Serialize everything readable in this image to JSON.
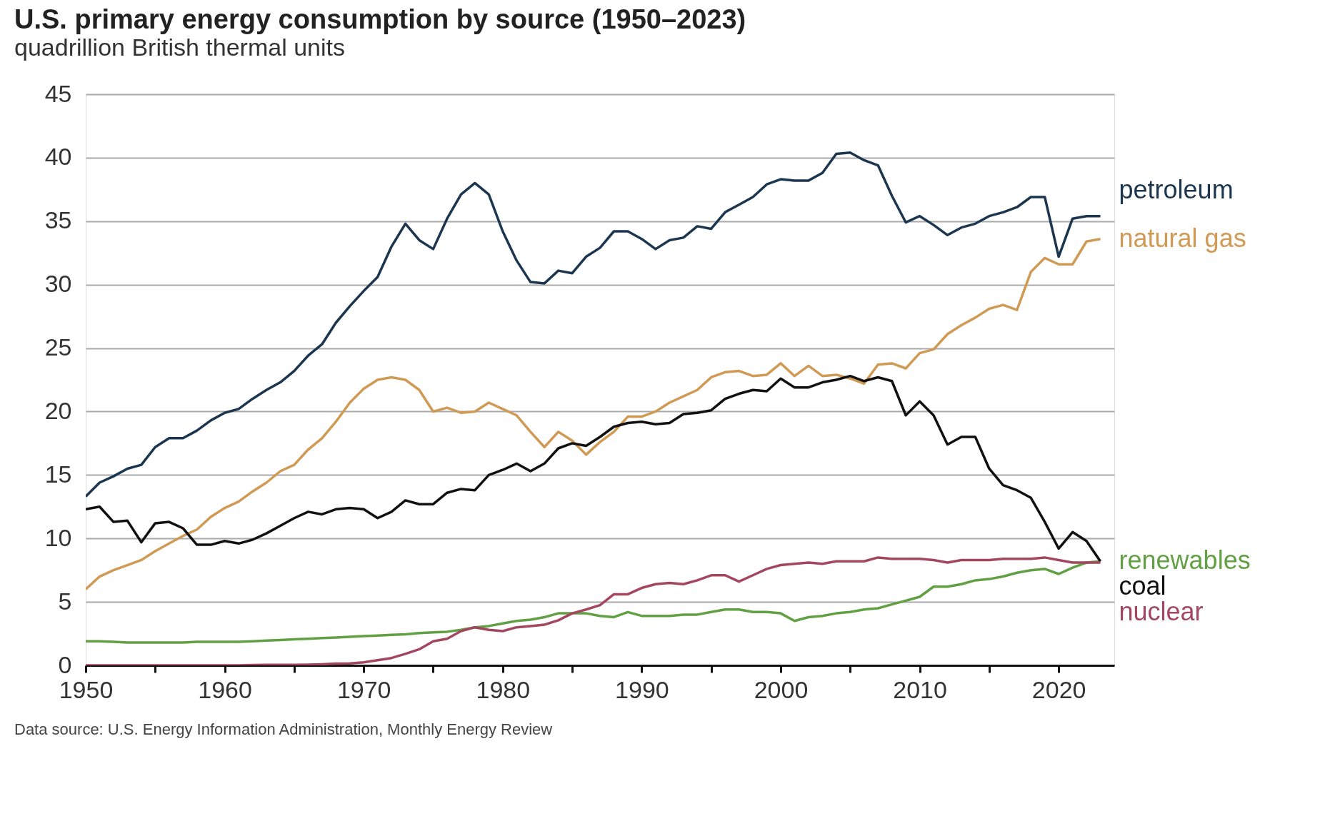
{
  "chart_data": {
    "type": "line",
    "title": "U.S. primary energy consumption by source (1950–2023)",
    "subtitle": "quadrillion British thermal units",
    "x": [
      1950,
      1951,
      1952,
      1953,
      1954,
      1955,
      1956,
      1957,
      1958,
      1959,
      1960,
      1961,
      1962,
      1963,
      1964,
      1965,
      1966,
      1967,
      1968,
      1969,
      1970,
      1971,
      1972,
      1973,
      1974,
      1975,
      1976,
      1977,
      1978,
      1979,
      1980,
      1981,
      1982,
      1983,
      1984,
      1985,
      1986,
      1987,
      1988,
      1989,
      1990,
      1991,
      1992,
      1993,
      1994,
      1995,
      1996,
      1997,
      1998,
      1999,
      2000,
      2001,
      2002,
      2003,
      2004,
      2005,
      2006,
      2007,
      2008,
      2009,
      2010,
      2011,
      2012,
      2013,
      2014,
      2015,
      2016,
      2017,
      2018,
      2019,
      2020,
      2021,
      2022,
      2023
    ],
    "series": [
      {
        "name": "petroleum",
        "color": "#1c3650",
        "values": [
          13.3,
          14.4,
          14.9,
          15.5,
          15.8,
          17.2,
          17.9,
          17.9,
          18.5,
          19.3,
          19.9,
          20.2,
          21.0,
          21.7,
          22.3,
          23.2,
          24.4,
          25.3,
          27.0,
          28.3,
          29.5,
          30.6,
          33.0,
          34.8,
          33.5,
          32.8,
          35.2,
          37.1,
          38.0,
          37.1,
          34.2,
          31.9,
          30.2,
          30.1,
          31.1,
          30.9,
          32.2,
          32.9,
          34.2,
          34.2,
          33.6,
          32.8,
          33.5,
          33.7,
          34.6,
          34.4,
          35.7,
          36.3,
          36.9,
          37.9,
          38.3,
          38.2,
          38.2,
          38.8,
          40.3,
          40.4,
          39.8,
          39.4,
          37.0,
          34.9,
          35.4,
          34.7,
          33.9,
          34.5,
          34.8,
          35.4,
          35.7,
          36.1,
          36.9,
          36.9,
          32.2,
          35.2,
          35.4,
          35.4
        ]
      },
      {
        "name": "natural gas",
        "color": "#d09a55",
        "values": [
          6.0,
          7.0,
          7.5,
          7.9,
          8.3,
          9.0,
          9.6,
          10.2,
          10.7,
          11.7,
          12.4,
          12.9,
          13.7,
          14.4,
          15.3,
          15.8,
          17.0,
          17.9,
          19.2,
          20.7,
          21.8,
          22.5,
          22.7,
          22.5,
          21.7,
          20.0,
          20.3,
          19.9,
          20.0,
          20.7,
          20.2,
          19.7,
          18.4,
          17.2,
          18.4,
          17.7,
          16.6,
          17.6,
          18.4,
          19.6,
          19.6,
          20.0,
          20.7,
          21.2,
          21.7,
          22.7,
          23.1,
          23.2,
          22.8,
          22.9,
          23.8,
          22.8,
          23.6,
          22.8,
          22.9,
          22.6,
          22.2,
          23.7,
          23.8,
          23.4,
          24.6,
          24.9,
          26.1,
          26.8,
          27.4,
          28.1,
          28.4,
          28.0,
          31.0,
          32.1,
          31.6,
          31.6,
          33.4,
          33.6
        ]
      },
      {
        "name": "renewables",
        "color": "#62a044",
        "values": [
          1.9,
          1.9,
          1.85,
          1.8,
          1.8,
          1.8,
          1.8,
          1.8,
          1.85,
          1.85,
          1.85,
          1.85,
          1.9,
          1.95,
          2.0,
          2.05,
          2.1,
          2.15,
          2.2,
          2.25,
          2.3,
          2.35,
          2.4,
          2.45,
          2.55,
          2.6,
          2.65,
          2.8,
          3.0,
          3.1,
          3.3,
          3.5,
          3.6,
          3.8,
          4.1,
          4.1,
          4.1,
          3.9,
          3.8,
          4.2,
          3.9,
          3.9,
          3.9,
          4.0,
          4.0,
          4.2,
          4.4,
          4.4,
          4.2,
          4.2,
          4.1,
          3.5,
          3.8,
          3.9,
          4.1,
          4.2,
          4.4,
          4.5,
          4.8,
          5.1,
          5.4,
          6.2,
          6.2,
          6.4,
          6.7,
          6.8,
          7.0,
          7.3,
          7.5,
          7.6,
          7.2,
          7.7,
          8.1,
          8.2
        ]
      },
      {
        "name": "coal",
        "color": "#111111",
        "values": [
          12.3,
          12.5,
          11.3,
          11.4,
          9.7,
          11.2,
          11.3,
          10.8,
          9.5,
          9.5,
          9.8,
          9.6,
          9.9,
          10.4,
          11.0,
          11.6,
          12.1,
          11.9,
          12.3,
          12.4,
          12.3,
          11.6,
          12.1,
          13.0,
          12.7,
          12.7,
          13.6,
          13.9,
          13.8,
          15.0,
          15.4,
          15.9,
          15.3,
          15.9,
          17.1,
          17.5,
          17.3,
          18.0,
          18.8,
          19.1,
          19.2,
          19.0,
          19.1,
          19.8,
          19.9,
          20.1,
          21.0,
          21.4,
          21.7,
          21.6,
          22.6,
          21.9,
          21.9,
          22.3,
          22.5,
          22.8,
          22.4,
          22.7,
          22.4,
          19.7,
          20.8,
          19.7,
          17.4,
          18.0,
          18.0,
          15.5,
          14.2,
          13.8,
          13.2,
          11.3,
          9.2,
          10.5,
          9.8,
          8.2
        ]
      },
      {
        "name": "nuclear",
        "color": "#a2475f",
        "values": [
          0,
          0,
          0,
          0,
          0,
          0,
          0,
          0,
          0,
          0,
          0,
          0,
          0.03,
          0.04,
          0.04,
          0.04,
          0.06,
          0.09,
          0.14,
          0.15,
          0.24,
          0.41,
          0.58,
          0.91,
          1.27,
          1.9,
          2.1,
          2.7,
          3.0,
          2.8,
          2.7,
          3.0,
          3.1,
          3.2,
          3.55,
          4.1,
          4.4,
          4.75,
          5.6,
          5.6,
          6.1,
          6.4,
          6.5,
          6.4,
          6.7,
          7.1,
          7.1,
          6.6,
          7.1,
          7.6,
          7.9,
          8.0,
          8.1,
          8.0,
          8.2,
          8.2,
          8.2,
          8.5,
          8.4,
          8.4,
          8.4,
          8.3,
          8.1,
          8.3,
          8.3,
          8.3,
          8.4,
          8.4,
          8.4,
          8.5,
          8.3,
          8.1,
          8.1,
          8.1
        ]
      }
    ],
    "xlim": [
      1950,
      2024
    ],
    "xticks": [
      1950,
      {
        "value": 1955,
        "label": null
      },
      1960,
      {
        "value": 1965,
        "label": null
      },
      1970,
      {
        "value": 1975,
        "label": null
      },
      1980,
      {
        "value": 1985,
        "label": null
      },
      1990,
      {
        "value": 1995,
        "label": null
      },
      2000,
      {
        "value": 2005,
        "label": null
      },
      2010,
      {
        "value": 2015,
        "label": null
      },
      2020
    ],
    "ylim": [
      0,
      45
    ],
    "yticks": [
      0,
      5,
      10,
      15,
      20,
      25,
      30,
      35,
      40,
      45
    ],
    "grid": "y",
    "legend": false,
    "line_style": "solid",
    "marker": "none",
    "annotations": [
      "Data source: U.S. Energy Information Administration, Monthly Energy Review"
    ]
  }
}
